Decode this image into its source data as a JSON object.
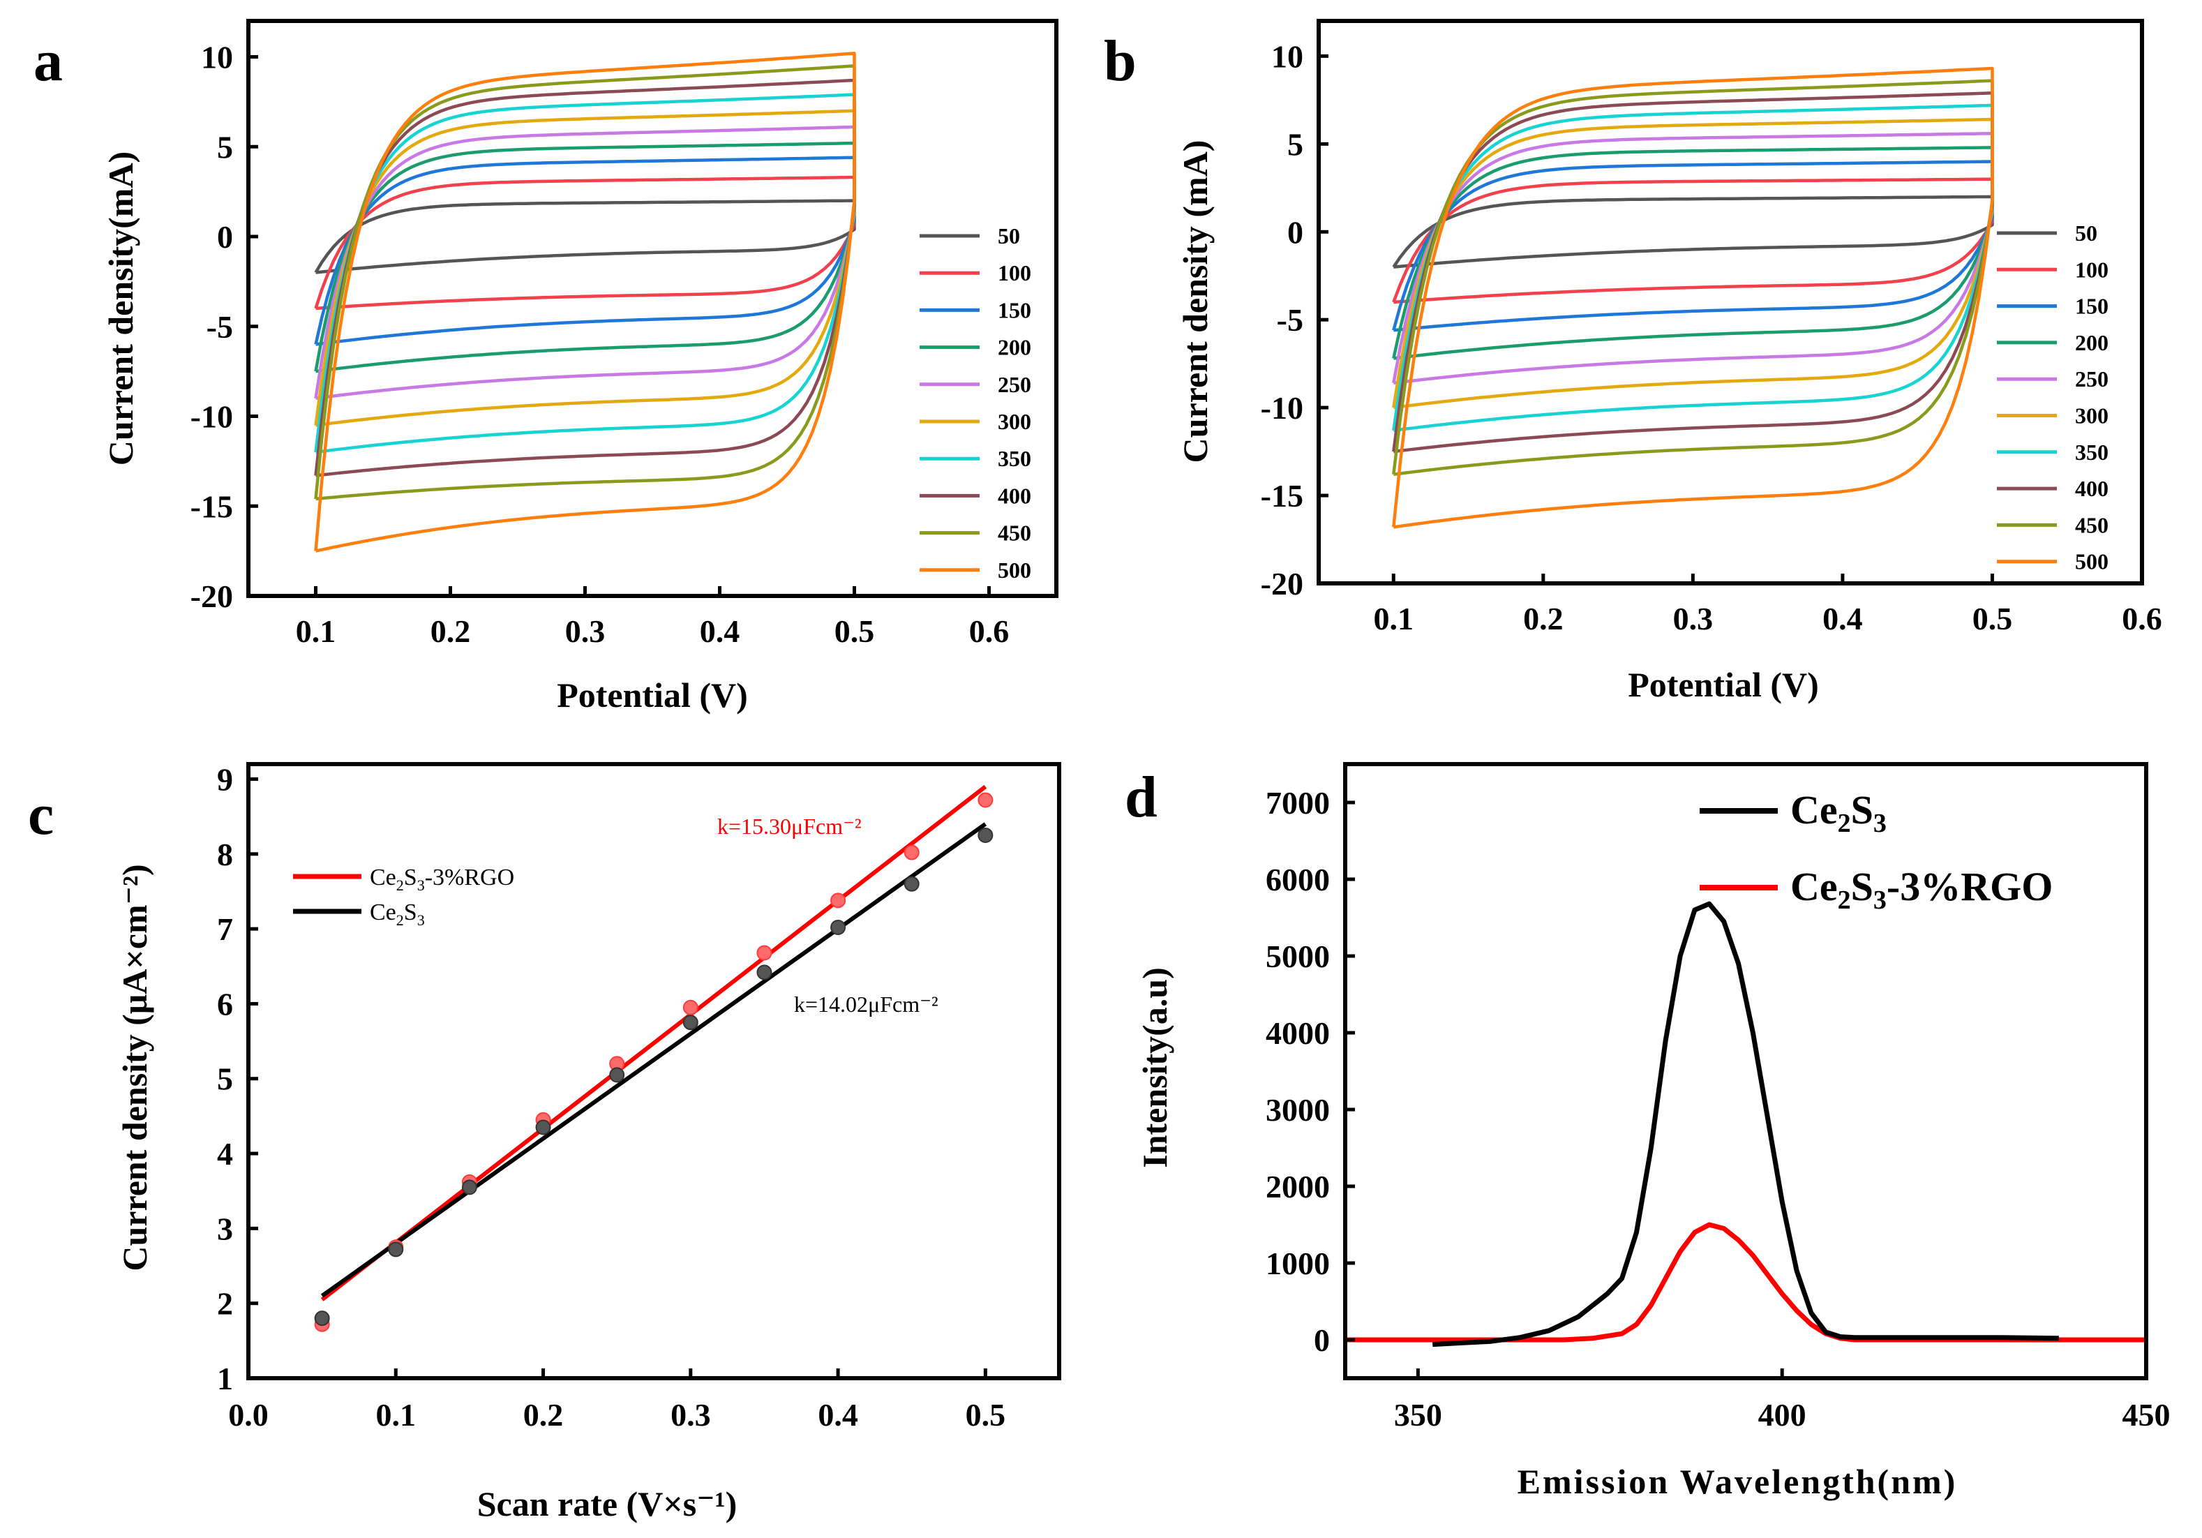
{
  "chart_data": [
    {
      "id": "a",
      "type": "line",
      "panel_label": "a",
      "xlabel": "Potential (V)",
      "ylabel": "Current density(mA)",
      "xlim": [
        0.05,
        0.65
      ],
      "ylim": [
        -20,
        12
      ],
      "xticks": [
        0.1,
        0.2,
        0.3,
        0.4,
        0.5,
        0.6
      ],
      "xtick_labels": [
        "0.1",
        "0.2",
        "0.3",
        "0.4",
        "0.5",
        "0.6"
      ],
      "yticks": [
        -20,
        -15,
        -10,
        -5,
        0,
        5,
        10
      ],
      "ytick_labels": [
        "-20",
        "-15",
        "-10",
        "-5",
        "0",
        "5",
        "10"
      ],
      "legend_position": "right",
      "series": [
        {
          "name": "50",
          "color": "#555555",
          "anodic_plateau": 1.8,
          "cathodic_edge": -2.0,
          "cathodic_min": -0.8,
          "anodic_end": 2.0
        },
        {
          "name": "100",
          "color": "#f0414c",
          "anodic_plateau": 3.0,
          "cathodic_edge": -4.0,
          "cathodic_min": -3.2,
          "anodic_end": 3.3
        },
        {
          "name": "150",
          "color": "#1f77d8",
          "anodic_plateau": 4.0,
          "cathodic_edge": -6.0,
          "cathodic_min": -4.5,
          "anodic_end": 4.4
        },
        {
          "name": "200",
          "color": "#1a9c6c",
          "anodic_plateau": 4.8,
          "cathodic_edge": -7.5,
          "cathodic_min": -6.0,
          "anodic_end": 5.2
        },
        {
          "name": "250",
          "color": "#c879e6",
          "anodic_plateau": 5.5,
          "cathodic_edge": -9.0,
          "cathodic_min": -7.5,
          "anodic_end": 6.1
        },
        {
          "name": "300",
          "color": "#e3a90e",
          "anodic_plateau": 6.3,
          "cathodic_edge": -10.5,
          "cathodic_min": -9.0,
          "anodic_end": 7.0
        },
        {
          "name": "350",
          "color": "#17d4d2",
          "anodic_plateau": 7.0,
          "cathodic_edge": -12.0,
          "cathodic_min": -10.5,
          "anodic_end": 7.9
        },
        {
          "name": "400",
          "color": "#8c4a55",
          "anodic_plateau": 7.6,
          "cathodic_edge": -13.3,
          "cathodic_min": -12.0,
          "anodic_end": 8.7
        },
        {
          "name": "450",
          "color": "#8a9a1c",
          "anodic_plateau": 8.1,
          "cathodic_edge": -14.6,
          "cathodic_min": -13.5,
          "anodic_end": 9.5
        },
        {
          "name": "500",
          "color": "#ff7f0e",
          "anodic_plateau": 8.6,
          "cathodic_edge": -17.5,
          "cathodic_min": -15.0,
          "anodic_end": 10.2
        }
      ]
    },
    {
      "id": "b",
      "type": "line",
      "panel_label": "b",
      "xlabel": "Potential (V)",
      "ylabel": "Current density (mA)",
      "xlim": [
        0.05,
        0.6
      ],
      "ylim": [
        -20,
        12
      ],
      "xticks": [
        0.1,
        0.2,
        0.3,
        0.4,
        0.5,
        0.6
      ],
      "xtick_labels": [
        "0.1",
        "0.2",
        "0.3",
        "0.4",
        "0.5",
        "0.6"
      ],
      "yticks": [
        -20,
        -15,
        -10,
        -5,
        0,
        5,
        10
      ],
      "ytick_labels": [
        "-20",
        "-15",
        "-10",
        "-5",
        "0",
        "5",
        "10"
      ],
      "legend_position": "right",
      "series": [
        {
          "name": "50",
          "color": "#555555",
          "anodic_plateau": 1.8,
          "cathodic_edge": -2.0,
          "cathodic_min": -0.8,
          "anodic_end": 2.0
        },
        {
          "name": "100",
          "color": "#f0414c",
          "anodic_plateau": 2.8,
          "cathodic_edge": -4.0,
          "cathodic_min": -3.0,
          "anodic_end": 3.0
        },
        {
          "name": "150",
          "color": "#1f77d8",
          "anodic_plateau": 3.7,
          "cathodic_edge": -5.6,
          "cathodic_min": -4.3,
          "anodic_end": 4.0
        },
        {
          "name": "200",
          "color": "#1a9c6c",
          "anodic_plateau": 4.5,
          "cathodic_edge": -7.2,
          "cathodic_min": -5.6,
          "anodic_end": 4.8
        },
        {
          "name": "250",
          "color": "#c879e6",
          "anodic_plateau": 5.2,
          "cathodic_edge": -8.6,
          "cathodic_min": -7.0,
          "anodic_end": 5.6
        },
        {
          "name": "300",
          "color": "#e3a90e",
          "anodic_plateau": 5.9,
          "cathodic_edge": -10.0,
          "cathodic_min": -8.3,
          "anodic_end": 6.4
        },
        {
          "name": "350",
          "color": "#17d4d2",
          "anodic_plateau": 6.5,
          "cathodic_edge": -11.3,
          "cathodic_min": -9.6,
          "anodic_end": 7.2
        },
        {
          "name": "400",
          "color": "#8c4a55",
          "anodic_plateau": 7.1,
          "cathodic_edge": -12.5,
          "cathodic_min": -10.9,
          "anodic_end": 7.9
        },
        {
          "name": "450",
          "color": "#8a9a1c",
          "anodic_plateau": 7.6,
          "cathodic_edge": -13.8,
          "cathodic_min": -12.1,
          "anodic_end": 8.6
        },
        {
          "name": "500",
          "color": "#ff7f0e",
          "anodic_plateau": 8.1,
          "cathodic_edge": -16.8,
          "cathodic_min": -14.9,
          "anodic_end": 9.3
        }
      ]
    },
    {
      "id": "c",
      "type": "scatter",
      "panel_label": "c",
      "xlabel": "Scan rate (V×s⁻¹)",
      "ylabel": "Current density  (μA×cm⁻²)",
      "xlim": [
        0.0,
        0.55
      ],
      "ylim": [
        1,
        9.2
      ],
      "xticks": [
        0.0,
        0.1,
        0.2,
        0.3,
        0.4,
        0.5
      ],
      "xtick_labels": [
        "0.0",
        "0.1",
        "0.2",
        "0.3",
        "0.4",
        "0.5"
      ],
      "yticks": [
        1,
        2,
        3,
        4,
        5,
        6,
        7,
        8,
        9
      ],
      "ytick_labels": [
        "1",
        "2",
        "3",
        "4",
        "5",
        "6",
        "7",
        "8",
        "9"
      ],
      "legend_position": "top-left",
      "series": [
        {
          "name": "Ce2S3-3%RGO",
          "color": "#ff0000",
          "x": [
            0.05,
            0.1,
            0.15,
            0.2,
            0.25,
            0.3,
            0.35,
            0.4,
            0.45,
            0.5
          ],
          "y": [
            1.72,
            2.75,
            3.62,
            4.45,
            5.2,
            5.95,
            6.68,
            7.38,
            8.02,
            8.72
          ],
          "fit": {
            "x": [
              0.05,
              0.5
            ],
            "y": [
              2.05,
              8.9
            ]
          },
          "annotation": "k=15.30μFcm⁻²"
        },
        {
          "name": "Ce2S3",
          "color": "#000000",
          "x": [
            0.05,
            0.1,
            0.15,
            0.2,
            0.25,
            0.3,
            0.35,
            0.4,
            0.45,
            0.5
          ],
          "y": [
            1.8,
            2.72,
            3.55,
            4.35,
            5.05,
            5.75,
            6.42,
            7.02,
            7.6,
            8.25
          ],
          "fit": {
            "x": [
              0.05,
              0.5
            ],
            "y": [
              2.1,
              8.4
            ]
          },
          "annotation": "k=14.02μFcm⁻²"
        }
      ],
      "legend_labels": {
        "rgo": {
          "base1": "Ce",
          "sub1": "2",
          "base2": "S",
          "sub2": "3",
          "suffix": "-3%RGO"
        },
        "pure": {
          "base1": "Ce",
          "sub1": "2",
          "base2": "S",
          "sub2": "3"
        }
      }
    },
    {
      "id": "d",
      "type": "line",
      "panel_label": "d",
      "xlabel": "Emission Wavelength(nm)",
      "ylabel": "Intensity(a.u)",
      "xlim": [
        340,
        450
      ],
      "ylim": [
        -500,
        7500
      ],
      "xticks": [
        350,
        400,
        450
      ],
      "xtick_labels": [
        "350",
        "400",
        "450"
      ],
      "yticks": [
        0,
        1000,
        2000,
        3000,
        4000,
        5000,
        6000,
        7000
      ],
      "ytick_labels": [
        "0",
        "1000",
        "2000",
        "3000",
        "4000",
        "5000",
        "6000",
        "7000"
      ],
      "legend_position": "top-right",
      "series": [
        {
          "name": "Ce2S3",
          "color": "#000000",
          "x": [
            352,
            356,
            360,
            364,
            368,
            372,
            376,
            378,
            380,
            382,
            384,
            386,
            388,
            390,
            392,
            394,
            396,
            398,
            400,
            402,
            404,
            406,
            408,
            410,
            420,
            430,
            438
          ],
          "y": [
            -60,
            -40,
            -20,
            30,
            120,
            300,
            600,
            800,
            1400,
            2500,
            3900,
            5000,
            5600,
            5680,
            5450,
            4900,
            4000,
            2900,
            1800,
            900,
            350,
            100,
            40,
            30,
            30,
            30,
            20
          ]
        },
        {
          "name": "Ce2S3-3%RGO",
          "color": "#ff0000",
          "x": [
            340,
            350,
            360,
            370,
            374,
            378,
            380,
            382,
            384,
            386,
            388,
            390,
            392,
            394,
            396,
            398,
            400,
            402,
            404,
            406,
            408,
            410,
            420,
            430,
            440,
            450
          ],
          "y": [
            0,
            0,
            0,
            0,
            20,
            80,
            200,
            450,
            800,
            1150,
            1400,
            1500,
            1450,
            1300,
            1100,
            850,
            600,
            380,
            200,
            80,
            20,
            0,
            0,
            0,
            0,
            0
          ]
        }
      ],
      "legend_labels": {
        "pure": {
          "base1": "Ce",
          "sub1": "2",
          "base2": "S",
          "sub2": "3"
        },
        "rgo": {
          "base1": "Ce",
          "sub1": "2",
          "base2": "S",
          "sub2": "3",
          "suffix": "-3%RGO"
        }
      }
    }
  ]
}
